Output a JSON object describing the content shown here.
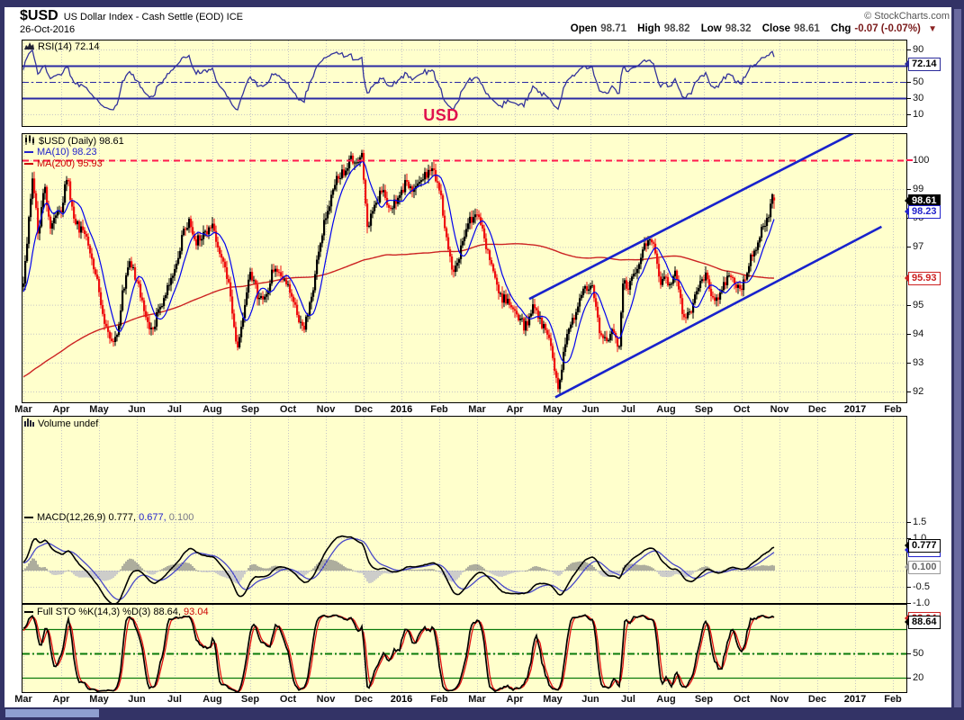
{
  "header": {
    "symbol": "$USD",
    "title": "US Dollar Index - Cash Settle (EOD) ICE",
    "date": "26-Oct-2016",
    "copyright": "© StockCharts.com",
    "open_label": "Open",
    "open": "98.71",
    "high_label": "High",
    "high": "98.82",
    "low_label": "Low",
    "low": "98.32",
    "close_label": "Close",
    "close": "98.61",
    "chg_label": "Chg",
    "chg": "-0.07 (-0.07%)",
    "dropdown_icon": "▼"
  },
  "chart_data": {
    "type": "candlestick-multi-panel",
    "instrument": "$USD US Dollar Index - Cash Settle (EOD) ICE",
    "last_date": "26-Oct-2016",
    "ohlc": {
      "open": 98.71,
      "high": 98.82,
      "low": 98.32,
      "close": 98.61,
      "chg": "-0.07 (-0.07%)"
    },
    "x_axis": {
      "months": [
        "Mar",
        "Apr",
        "May",
        "Jun",
        "Jul",
        "Aug",
        "Sep",
        "Oct",
        "Nov",
        "Dec",
        "2016",
        "Feb",
        "Mar",
        "Apr",
        "May",
        "Jun",
        "Jul",
        "Aug",
        "Sep",
        "Oct",
        "Nov",
        "Dec",
        "2017",
        "Feb"
      ]
    },
    "colors": {
      "background": "#ffffcc",
      "frame": "#333366",
      "grid": "#c6c6c6",
      "candle_up": "#000000",
      "candle_down": "#ee1111",
      "ma10": "#0000ee",
      "ma200": "#cc2222",
      "rsi_line": "#32329b",
      "rsi_level": "#2929a3",
      "overlay_red": "#ff1a4d",
      "channel": "#1822cc",
      "macd_line": "#000000",
      "macd_signal": "#4848c8",
      "hist_pos": "#5b5b6e",
      "hist_neg": "#9b9bc8",
      "sto_k": "#000000",
      "sto_d": "#e01010",
      "sto_level": "#0a7a0a",
      "annotation": "#e0114d"
    },
    "rsi_panel": {
      "label": "RSI(14) 72.14",
      "period": 14,
      "value": 72.14,
      "overbought": 70,
      "oversold": 30,
      "mid": 50,
      "ylim": [
        0,
        100
      ],
      "grid_values": [
        90,
        70,
        50,
        30,
        10
      ],
      "yticks": [
        {
          "v": 90,
          "t": "90"
        },
        {
          "v": 50,
          "t": "50"
        },
        {
          "v": 30,
          "t": "30"
        },
        {
          "v": 10,
          "t": "10"
        }
      ],
      "callouts": [
        {
          "text": "72.14",
          "value": 72.14,
          "variant": "navy"
        }
      ]
    },
    "price_panel": {
      "label": "$USD (Daily) 98.61",
      "last_close": 98.61,
      "ma10": {
        "label": "MA(10) 98.23",
        "value": 98.23
      },
      "ma200": {
        "label": "MA(200) 95.93",
        "value": 95.93
      },
      "ylim": [
        91.6,
        100.9
      ],
      "grid_values": [
        100,
        99,
        98,
        97,
        96,
        95,
        94,
        93,
        92
      ],
      "yticks": [
        {
          "v": 100,
          "t": "100",
          "red": true
        },
        {
          "v": 99,
          "t": "99"
        },
        {
          "v": 98,
          "t": "98"
        },
        {
          "v": 97,
          "t": "97"
        },
        {
          "v": 95,
          "t": "95"
        },
        {
          "v": 94,
          "t": "94"
        },
        {
          "v": 93,
          "t": "93"
        },
        {
          "v": 92,
          "t": "92"
        }
      ],
      "callouts": [
        {
          "text": "98.61",
          "value": 98.61,
          "variant": "black"
        },
        {
          "text": "98.23",
          "value": 98.23,
          "variant": "blue"
        },
        {
          "text": "95.93",
          "value": 95.93,
          "variant": "red"
        }
      ],
      "hline": {
        "value": 100,
        "style": "dashed"
      },
      "annotation": {
        "text": "USD"
      },
      "trend_channel": [
        {
          "from_m": 14.07,
          "from_p": 91.8,
          "to_m": 22.7,
          "to_p": 97.7
        },
        {
          "from_m": 13.38,
          "from_p": 95.2,
          "to_m": 22.2,
          "to_p": 101.1
        }
      ],
      "weekly_close_anchors": [
        [
          0.0,
          95.6
        ],
        [
          0.1,
          97.2
        ],
        [
          0.25,
          99.6
        ],
        [
          0.4,
          97.2
        ],
        [
          0.55,
          99.3
        ],
        [
          0.7,
          97.6
        ],
        [
          0.85,
          98.0
        ],
        [
          1.0,
          98.4
        ],
        [
          1.15,
          99.4
        ],
        [
          1.3,
          98.2
        ],
        [
          1.5,
          97.6
        ],
        [
          1.7,
          97.1
        ],
        [
          1.9,
          96.2
        ],
        [
          2.05,
          95.0
        ],
        [
          2.25,
          93.9
        ],
        [
          2.45,
          93.7
        ],
        [
          2.6,
          95.2
        ],
        [
          2.8,
          96.6
        ],
        [
          3.0,
          95.8
        ],
        [
          3.2,
          94.9
        ],
        [
          3.4,
          94.0
        ],
        [
          3.6,
          94.9
        ],
        [
          3.8,
          95.6
        ],
        [
          4.0,
          96.2
        ],
        [
          4.2,
          97.3
        ],
        [
          4.4,
          98.0
        ],
        [
          4.55,
          97.1
        ],
        [
          4.75,
          97.4
        ],
        [
          5.0,
          97.8
        ],
        [
          5.2,
          96.8
        ],
        [
          5.45,
          95.6
        ],
        [
          5.65,
          93.3
        ],
        [
          5.8,
          94.6
        ],
        [
          6.0,
          96.1
        ],
        [
          6.2,
          95.3
        ],
        [
          6.4,
          95.1
        ],
        [
          6.6,
          96.3
        ],
        [
          6.8,
          96.0
        ],
        [
          7.0,
          95.8
        ],
        [
          7.2,
          94.8
        ],
        [
          7.4,
          94.1
        ],
        [
          7.6,
          95.1
        ],
        [
          7.8,
          96.8
        ],
        [
          8.0,
          98.0
        ],
        [
          8.2,
          99.2
        ],
        [
          8.45,
          99.6
        ],
        [
          8.7,
          100.0
        ],
        [
          8.95,
          100.2
        ],
        [
          9.1,
          97.7
        ],
        [
          9.3,
          98.4
        ],
        [
          9.5,
          99.1
        ],
        [
          9.7,
          98.2
        ],
        [
          9.9,
          98.7
        ],
        [
          10.1,
          99.2
        ],
        [
          10.35,
          99.0
        ],
        [
          10.6,
          99.5
        ],
        [
          10.85,
          99.6
        ],
        [
          11.05,
          98.8
        ],
        [
          11.2,
          97.1
        ],
        [
          11.35,
          96.1
        ],
        [
          11.55,
          96.9
        ],
        [
          11.8,
          97.9
        ],
        [
          12.0,
          98.2
        ],
        [
          12.2,
          97.3
        ],
        [
          12.4,
          96.3
        ],
        [
          12.6,
          95.3
        ],
        [
          12.85,
          95.1
        ],
        [
          13.05,
          94.7
        ],
        [
          13.25,
          94.2
        ],
        [
          13.45,
          94.9
        ],
        [
          13.7,
          94.4
        ],
        [
          13.9,
          93.8
        ],
        [
          14.05,
          92.7
        ],
        [
          14.15,
          92.1
        ],
        [
          14.35,
          93.9
        ],
        [
          14.6,
          94.7
        ],
        [
          14.85,
          95.6
        ],
        [
          15.05,
          95.5
        ],
        [
          15.25,
          94.1
        ],
        [
          15.45,
          93.6
        ],
        [
          15.6,
          94.3
        ],
        [
          15.75,
          93.4
        ],
        [
          15.85,
          95.8
        ],
        [
          16.05,
          95.7
        ],
        [
          16.25,
          96.3
        ],
        [
          16.45,
          97.1
        ],
        [
          16.65,
          97.2
        ],
        [
          16.85,
          95.8
        ],
        [
          17.05,
          95.8
        ],
        [
          17.25,
          96.0
        ],
        [
          17.45,
          94.7
        ],
        [
          17.65,
          94.7
        ],
        [
          17.85,
          95.7
        ],
        [
          18.05,
          95.9
        ],
        [
          18.25,
          95.1
        ],
        [
          18.45,
          95.4
        ],
        [
          18.65,
          96.1
        ],
        [
          18.85,
          95.5
        ],
        [
          19.05,
          95.8
        ],
        [
          19.25,
          96.7
        ],
        [
          19.45,
          97.3
        ],
        [
          19.65,
          97.9
        ],
        [
          19.8,
          98.7
        ],
        [
          19.87,
          98.61
        ]
      ]
    },
    "volume_panel": {
      "label": "Volume undef"
    },
    "macd_panel": {
      "label": "MACD(12,26,9) 0.777,",
      "label_signal": "0.677,",
      "label_hist": "0.100",
      "values": [
        0.777,
        0.677,
        0.1
      ],
      "grid_values": [
        1.5,
        1.0,
        0.5,
        0,
        -0.5,
        -1.0
      ],
      "yticks": [
        {
          "v": 1.5,
          "t": "1.5"
        },
        {
          "v": 1.0,
          "t": "1.0"
        },
        {
          "v": -0.5,
          "t": "-0.5"
        },
        {
          "v": -1.0,
          "t": "-1.0"
        }
      ],
      "callouts": [
        {
          "text": "0.677",
          "value": 0.64,
          "variant": "blue"
        },
        {
          "text": "0.777",
          "value": 0.78,
          "variant": "blackline"
        },
        {
          "text": "0.100",
          "value": 0.1,
          "variant": "gray"
        }
      ]
    },
    "sto_panel": {
      "label": "Full STO %K(14,3) %D(3) 88.64,",
      "label_d": "93.04",
      "k": 88.64,
      "d": 93.04,
      "levels": [
        80,
        50,
        20
      ],
      "grid_values": [
        80,
        50,
        20
      ],
      "yticks": [
        {
          "v": 50,
          "t": "50"
        },
        {
          "v": 20,
          "t": "20"
        }
      ],
      "callouts": [
        {
          "text": "93.04",
          "value": 93.8,
          "variant": "red"
        },
        {
          "text": "88.64",
          "value": 88.64,
          "variant": "blackline"
        }
      ]
    }
  }
}
